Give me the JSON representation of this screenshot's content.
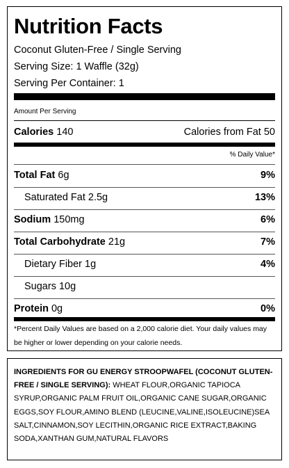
{
  "title": "Nutrition Facts",
  "product": "Coconut Gluten-Free / Single Serving",
  "serving_size": "Serving Size: 1 Waffle (32g)",
  "servings_per_container": "Serving Per Container: 1",
  "amount_per_serving": "Amount Per Serving",
  "calories_label": "Calories",
  "calories_value": "140",
  "calories_from_fat": "Calories from Fat 50",
  "daily_value_header": "% Daily Value*",
  "nutrients": [
    {
      "label": "Total Fat",
      "amount": "6g",
      "dv": "9%"
    },
    {
      "label": "Saturated Fat",
      "amount": "2.5g",
      "dv": "13%"
    },
    {
      "label": "Sodium",
      "amount": "150mg",
      "dv": "6%"
    },
    {
      "label": "Total Carbohydrate",
      "amount": "21g",
      "dv": "7%"
    },
    {
      "label": "Dietary Fiber",
      "amount": "1g",
      "dv": "4%"
    },
    {
      "label": "Sugars",
      "amount": "10g",
      "dv": ""
    },
    {
      "label": "Protein",
      "amount": "0g",
      "dv": "0%"
    }
  ],
  "footnote": "*Percent Daily Values are based on a 2,000 calorie diet. Your daily values may be higher or lower depending on your calorie needs.",
  "ingredients_heading": "INGREDIENTS FOR GU ENERGY STROOPWAFEL (COCONUT GLUTEN-FREE / SINGLE SERVING):",
  "ingredients_text": " WHEAT FLOUR,ORGANIC TAPIOCA SYRUP,ORGANIC PALM FRUIT OIL,ORGANIC CANE SUGAR,ORGANIC EGGS,SOY FLOUR,AMINO BLEND (LEUCINE,VALINE,ISOLEUCINE)SEA SALT,CINNAMON,SOY LECITHIN,ORGANIC RICE EXTRACT,BAKING SODA,XANTHAN GUM,NATURAL FLAVORS"
}
